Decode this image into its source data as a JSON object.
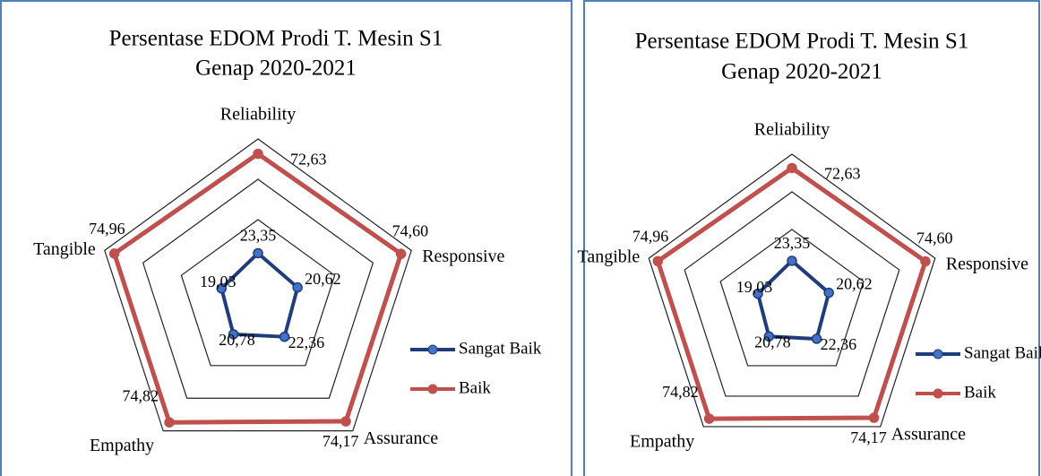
{
  "chart_data": [
    {
      "type": "radar",
      "title": "Persentase EDOM Prodi T. Mesin S1",
      "subtitle": "Genap 2020-2021",
      "categories": [
        "Reliability",
        "Responsive",
        "Assurance",
        "Empathy",
        "Tangible"
      ],
      "series": [
        {
          "name": "Sangat Baik",
          "color": "#1f3d7a",
          "values": [
            23.35,
            20.62,
            22.36,
            20.78,
            19.03
          ],
          "value_labels": [
            "23,35",
            "20,62",
            "22,36",
            "20,78",
            "19,03"
          ]
        },
        {
          "name": "Baik",
          "color": "#c0504d",
          "values": [
            72.63,
            74.6,
            74.17,
            74.82,
            74.96
          ],
          "value_labels": [
            "72,63",
            "74,60",
            "74,17",
            "74,82",
            "74,96"
          ]
        }
      ],
      "ylim": [
        0,
        80
      ],
      "yticks": [
        40,
        60,
        80
      ],
      "grid": true,
      "legend": "right"
    },
    {
      "type": "radar",
      "title": "Persentase EDOM Prodi T. Mesin S1",
      "subtitle": "Genap 2020-2021",
      "categories": [
        "Reliability",
        "Responsive",
        "Assurance",
        "Empathy",
        "Tangible"
      ],
      "series": [
        {
          "name": "Sangat Baik",
          "color": "#1f3d7a",
          "values": [
            23.35,
            20.62,
            22.36,
            20.78,
            19.03
          ],
          "value_labels": [
            "23,35",
            "20,62",
            "22,36",
            "20,78",
            "19,03"
          ]
        },
        {
          "name": "Baik",
          "color": "#c0504d",
          "values": [
            72.63,
            74.6,
            74.17,
            74.82,
            74.96
          ],
          "value_labels": [
            "72,63",
            "74,60",
            "74,17",
            "74,82",
            "74,96"
          ]
        }
      ],
      "ylim": [
        0,
        80
      ],
      "yticks": [
        40,
        60,
        80
      ],
      "grid": true,
      "legend": "right"
    }
  ]
}
